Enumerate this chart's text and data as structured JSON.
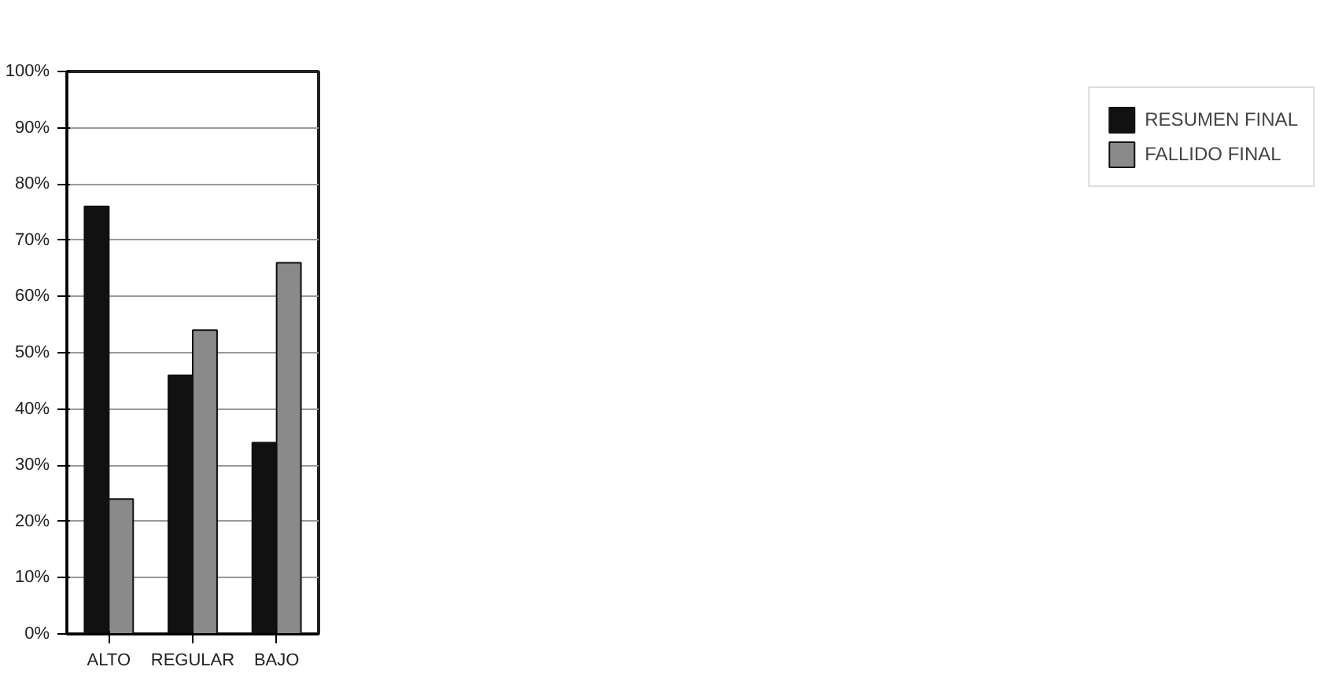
{
  "chart_data": {
    "type": "bar",
    "categories": [
      "ALTO",
      "REGULAR",
      "BAJO"
    ],
    "series": [
      {
        "name": "RESUMEN FINAL",
        "color": "#111111",
        "values": [
          76,
          46,
          34
        ]
      },
      {
        "name": "FALLIDO FINAL",
        "color": "#8a8a8a",
        "values": [
          24,
          54,
          66
        ]
      }
    ],
    "ylim": [
      0,
      100
    ],
    "yticks": [
      {
        "value": 0,
        "label": "0%"
      },
      {
        "value": 10,
        "label": "10%"
      },
      {
        "value": 20,
        "label": "20%"
      },
      {
        "value": 30,
        "label": "30%"
      },
      {
        "value": 40,
        "label": "40%"
      },
      {
        "value": 50,
        "label": "50%"
      },
      {
        "value": 60,
        "label": "60%"
      },
      {
        "value": 70,
        "label": "70%"
      },
      {
        "value": 80,
        "label": "80%"
      },
      {
        "value": 90,
        "label": "90%"
      },
      {
        "value": 100,
        "label": "100%"
      }
    ],
    "grid": "y",
    "legend": "right"
  }
}
